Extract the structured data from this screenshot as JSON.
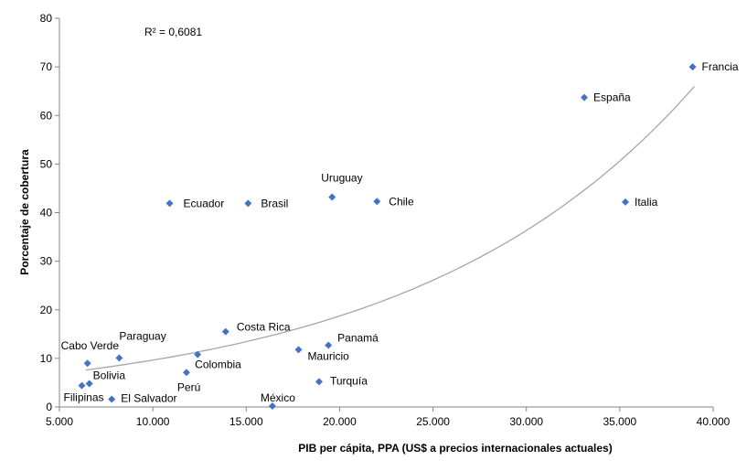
{
  "chart_data": {
    "type": "scatter",
    "title": "",
    "xlabel": "PIB per cápita, PPA (US$ a precios internacionales  actuales)",
    "ylabel": "Porcentaje de cobertura",
    "xlim": [
      5000,
      40000
    ],
    "ylim": [
      0,
      80
    ],
    "xticks": [
      5000,
      10000,
      15000,
      20000,
      25000,
      30000,
      35000,
      40000
    ],
    "xtick_labels": [
      "5.000",
      "10.000",
      "15.000",
      "20.000",
      "25.000",
      "30.000",
      "35.000",
      "40.000"
    ],
    "yticks": [
      0,
      10,
      20,
      30,
      40,
      50,
      60,
      70,
      80
    ],
    "ytick_labels": [
      "0",
      "10",
      "20",
      "30",
      "40",
      "50",
      "60",
      "70",
      "80"
    ],
    "grid": false,
    "marker_color": "#4472C4",
    "trend_color": "#a6a6a6",
    "trendline": {
      "type": "exponential",
      "r2_label": "R² = 0,6081",
      "x_range": [
        6400,
        39000
      ],
      "y_range": [
        7.6,
        66
      ]
    },
    "points": [
      {
        "label": "Francia",
        "x": 38900,
        "y": 70
      },
      {
        "label": "España",
        "x": 33100,
        "y": 63.7
      },
      {
        "label": "Italia",
        "x": 35300,
        "y": 42.2
      },
      {
        "label": "Uruguay",
        "x": 19600,
        "y": 43.2
      },
      {
        "label": "Chile",
        "x": 22000,
        "y": 42.3
      },
      {
        "label": "Ecuador",
        "x": 10900,
        "y": 41.9
      },
      {
        "label": "Brasil",
        "x": 15100,
        "y": 41.9
      },
      {
        "label": "Costa Rica",
        "x": 13900,
        "y": 15.5
      },
      {
        "label": "Panamá",
        "x": 19400,
        "y": 12.7
      },
      {
        "label": "Mauricio",
        "x": 17800,
        "y": 11.8
      },
      {
        "label": "Paraguay",
        "x": 8200,
        "y": 10.1
      },
      {
        "label": "Colombia",
        "x": 12400,
        "y": 10.8
      },
      {
        "label": "Perú",
        "x": 11800,
        "y": 7.1
      },
      {
        "label": "Turquía",
        "x": 18900,
        "y": 5.2
      },
      {
        "label": "Cabo Verde",
        "x": 6500,
        "y": 9.0
      },
      {
        "label": "Bolivia",
        "x": 6600,
        "y": 4.8
      },
      {
        "label": "Filipinas",
        "x": 6200,
        "y": 4.4
      },
      {
        "label": "El Salvador",
        "x": 7800,
        "y": 1.6
      },
      {
        "label": "México",
        "x": 16400,
        "y": 0.2
      }
    ]
  }
}
